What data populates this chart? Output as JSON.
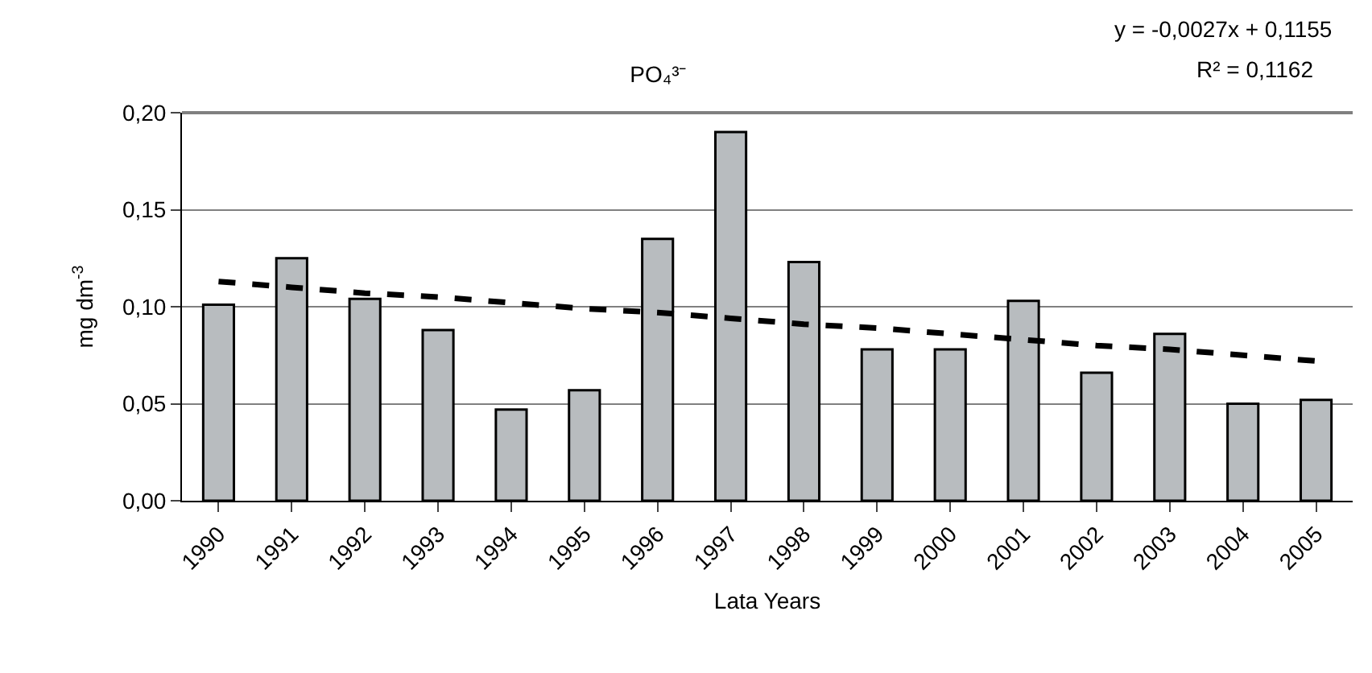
{
  "chart_data": {
    "type": "bar",
    "title": "PO₄³⁻",
    "xlabel": "Lata Years",
    "ylabel": "mg dm$^{-3}$",
    "categories": [
      "1990",
      "1991",
      "1992",
      "1993",
      "1994",
      "1995",
      "1996",
      "1997",
      "1998",
      "1999",
      "2000",
      "2001",
      "2002",
      "2003",
      "2004",
      "2005"
    ],
    "series": [
      {
        "color": "#b8bcbf",
        "values": [
          0.101,
          0.125,
          0.104,
          0.088,
          0.047,
          0.057,
          0.135,
          0.19,
          0.123,
          0.078,
          0.078,
          0.103,
          0.066,
          0.086,
          0.05,
          0.052
        ]
      },
      {
        "type": "line",
        "color": "#000000",
        "line_style": "dashed",
        "values": [
          0.113,
          0.11,
          0.107,
          0.105,
          0.102,
          0.099,
          0.097,
          0.094,
          0.091,
          0.089,
          0.086,
          0.083,
          0.08,
          0.078,
          0.075,
          0.072
        ]
      }
    ],
    "ylim": [
      0,
      0.2
    ],
    "yticks": [
      {
        "value": 0,
        "label": "0,00"
      },
      {
        "value": 0.05,
        "label": "0,05"
      },
      {
        "value": 0.1,
        "label": "0,10"
      },
      {
        "value": 0.15,
        "label": "0,15"
      },
      {
        "value": 0.2,
        "label": "0,20"
      }
    ],
    "grid": "y",
    "annotations": [
      "y = -0,0027x + 0,1155",
      "R² = 0,1162"
    ]
  }
}
